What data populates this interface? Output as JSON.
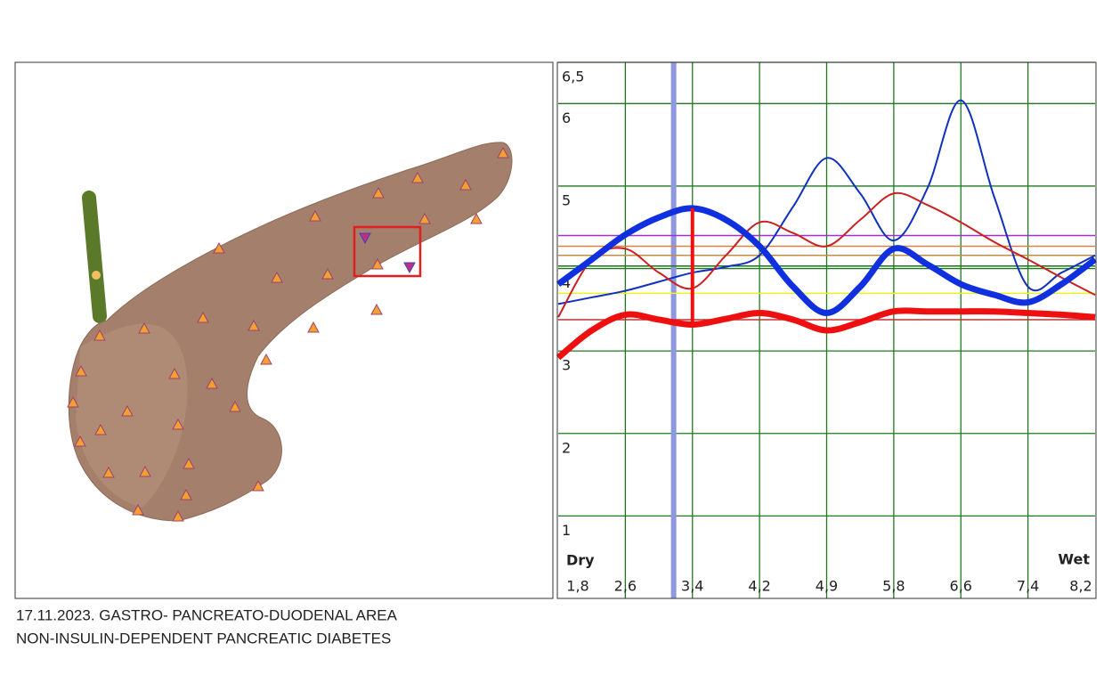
{
  "captions": [
    "17.11.2023. GASTRO- PANCREATO-DUODENAL AREA",
    "NON-INSULIN-DEPENDENT PANCREATIC DIABETES"
  ],
  "chart_data": {
    "type": "line",
    "left_label": "Dry",
    "right_label": "Wet",
    "categories": [
      "1,8",
      null,
      "2,6",
      null,
      "3,4",
      null,
      "4,2",
      null,
      "4,9",
      null,
      "5,8",
      null,
      "6,6",
      null,
      "7,4",
      null,
      "8,2"
    ],
    "ylim": [
      0,
      6.5
    ],
    "yticks": [
      1,
      2,
      3,
      4,
      5,
      6,
      {
        "value": 6.5,
        "label": "6,5"
      }
    ],
    "grid": true,
    "series": [
      {
        "color": "#1030e0",
        "width": 7,
        "values": [
          3.81,
          4.11,
          4.41,
          4.62,
          4.73,
          4.59,
          4.27,
          3.78,
          3.46,
          3.78,
          4.24,
          4.05,
          3.81,
          3.68,
          3.59,
          3.81,
          4.11
        ]
      },
      {
        "color": "#ee1010",
        "width": 7,
        "values": [
          2.92,
          3.25,
          3.44,
          3.38,
          3.32,
          3.39,
          3.46,
          3.38,
          3.25,
          3.35,
          3.48,
          3.48,
          3.48,
          3.48,
          3.46,
          3.44,
          3.41
        ]
      },
      {
        "color": "#1030c0",
        "width": 2,
        "values": [
          3.57,
          3.65,
          3.73,
          3.84,
          3.95,
          4.02,
          4.16,
          4.75,
          5.34,
          4.91,
          4.34,
          4.97,
          6.04,
          4.86,
          3.78,
          3.95,
          4.16
        ]
      },
      {
        "color": "#cc2020",
        "width": 2,
        "values": [
          3.41,
          4.11,
          4.24,
          3.95,
          3.76,
          4.16,
          4.56,
          4.43,
          4.27,
          4.59,
          4.91,
          4.77,
          4.56,
          4.32,
          4.11,
          3.89,
          3.68
        ]
      }
    ],
    "hlines": [
      {
        "value": 4.4,
        "color": "#a030d0"
      },
      {
        "value": 4.27,
        "color": "#e08040"
      },
      {
        "value": 4.16,
        "color": "#c09040"
      },
      {
        "value": 4.03,
        "color": "#207020"
      },
      {
        "value": 3.7,
        "color": "#f0f020"
      },
      {
        "value": 3.38,
        "color": "#c03030"
      }
    ],
    "vlines": [
      {
        "x": 3.44,
        "color": "#9098dd"
      }
    ],
    "connector_index": 4
  }
}
